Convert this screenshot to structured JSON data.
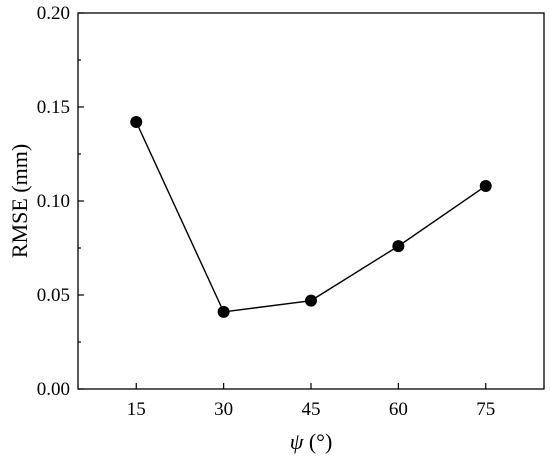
{
  "chart_data": {
    "type": "line",
    "title": "",
    "xlabel_symbol": "ψ",
    "xlabel_unit": " (°)",
    "ylabel": "RMSE (mm)",
    "x": [
      15,
      30,
      45,
      60,
      75
    ],
    "series": [
      {
        "values": [
          0.142,
          0.041,
          0.047,
          0.076,
          0.108
        ]
      }
    ],
    "xlim": [
      5,
      85
    ],
    "ylim": [
      0,
      0.2
    ],
    "x_ticks": [
      15,
      30,
      45,
      60,
      75
    ],
    "x_tick_labels": [
      "15",
      "30",
      "45",
      "60",
      "75"
    ],
    "y_ticks": [
      0,
      0.05,
      0.1,
      0.15,
      0.2
    ],
    "y_tick_labels": [
      "0.00",
      "0.05",
      "0.10",
      "0.15",
      "0.20"
    ],
    "grid": false,
    "legend": "none",
    "colors": {
      "line": "#000000",
      "marker": "#000000",
      "axis": "#000000"
    }
  }
}
